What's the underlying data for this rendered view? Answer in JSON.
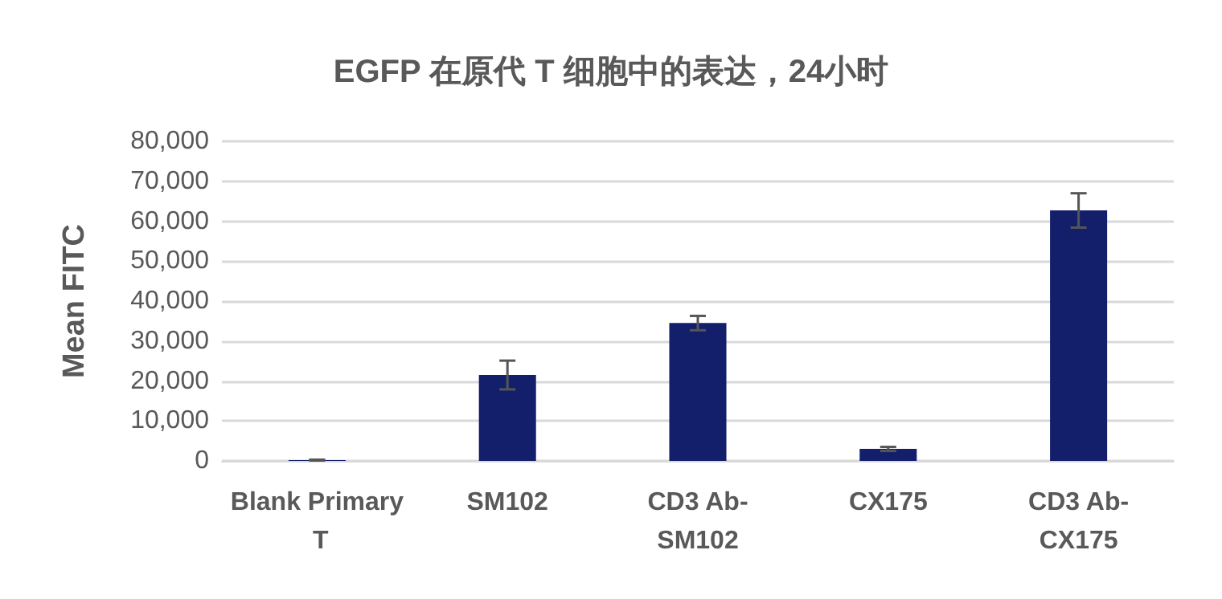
{
  "chart_data": {
    "type": "bar",
    "title": "EGFP 在原代 T 细胞中的表达，24小时",
    "ylabel": "Mean FITC",
    "categories": [
      "Blank Primary T",
      "SM102",
      "CD3 Ab-SM102",
      "CX175",
      "CD3 Ab-CX175"
    ],
    "values": [
      200,
      21500,
      34500,
      3000,
      62700
    ],
    "errors": [
      100,
      3600,
      1800,
      500,
      4300
    ],
    "color": "#131f6b",
    "ylim": [
      0,
      80000
    ],
    "yticks": [
      0,
      {
        "value": 10000,
        "label": "10,000"
      },
      {
        "value": 20000,
        "label": "20,000"
      },
      {
        "value": 30000,
        "label": "30,000"
      },
      {
        "value": 40000,
        "label": "40,000"
      },
      {
        "value": 50000,
        "label": "50,000"
      },
      {
        "value": 60000,
        "label": "60,000"
      },
      {
        "value": 70000,
        "label": "70,000"
      },
      {
        "value": 80000,
        "label": "80,000"
      }
    ],
    "grid": "y",
    "legend": false
  }
}
